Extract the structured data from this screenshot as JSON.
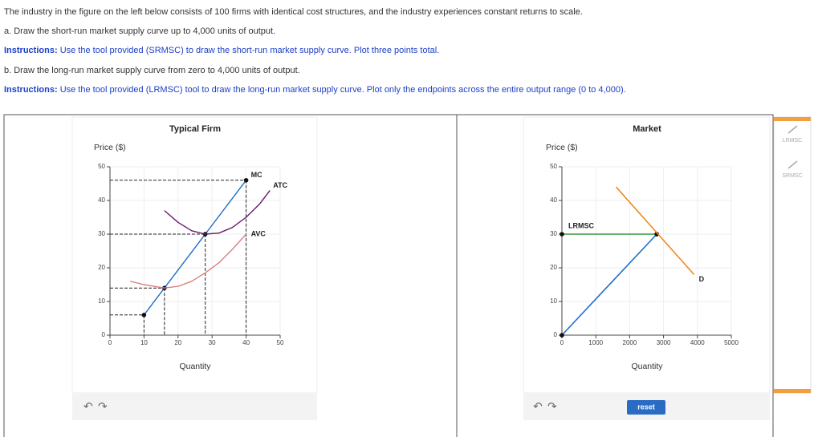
{
  "header": {
    "intro": "The industry in the figure on the left below consists of 100 firms with identical cost structures, and the industry experiences constant returns to scale.",
    "part_a": "a. Draw the short-run market supply curve up to 4,000 units of output.",
    "instr_a": {
      "label": "Instructions:",
      "text": "Use the tool provided (SRMSC) to draw the short-run market supply curve. Plot three points total."
    },
    "part_b": "b. Draw the long-run market supply curve from zero to 4,000 units of output.",
    "instr_b": {
      "label": "Instructions:",
      "text": "Use the tool provided (LRMSC) tool to draw the long-run market supply curve. Plot only the endpoints across the entire output range (0 to 4,000)."
    }
  },
  "chart_data": [
    {
      "type": "line",
      "title": "Typical Firm",
      "y_label": "Price ($)",
      "x_label": "Quantity",
      "xlim": [
        0,
        50
      ],
      "ylim": [
        0,
        50
      ],
      "xticks": [
        0,
        10,
        20,
        30,
        40,
        50
      ],
      "yticks": [
        0,
        10,
        20,
        30,
        40,
        50
      ],
      "grid": true,
      "series": [
        {
          "name": "MC",
          "color": "#1f6fc8",
          "x": [
            10,
            16,
            28,
            40
          ],
          "values": [
            6,
            14,
            30,
            46
          ],
          "markers": true,
          "guides": true
        },
        {
          "name": "ATC",
          "color": "#6a1a6a",
          "x": [
            16,
            20,
            24,
            28,
            32,
            36,
            40,
            44,
            47
          ],
          "values": [
            37,
            33.5,
            31,
            30,
            30.3,
            32,
            35,
            39,
            43
          ]
        },
        {
          "name": "AVC",
          "color": "#d98080",
          "x": [
            6,
            10,
            16,
            20,
            24,
            28,
            32,
            36,
            40
          ],
          "values": [
            16,
            15,
            14,
            14.5,
            16,
            18.5,
            21.5,
            25.5,
            30
          ]
        }
      ]
    },
    {
      "type": "line",
      "title": "Market",
      "y_label": "Price ($)",
      "x_label": "Quantity",
      "xlim": [
        0,
        5000
      ],
      "ylim": [
        0,
        50
      ],
      "xticks": [
        0,
        1000,
        2000,
        3000,
        4000,
        5000
      ],
      "yticks": [
        0,
        10,
        20,
        30,
        40,
        50
      ],
      "grid": true,
      "series": [
        {
          "color": "#1f6fc8",
          "x": [
            0,
            2800
          ],
          "values": [
            0,
            30
          ],
          "markers": true
        },
        {
          "name": "LRMSC",
          "color": "#3a9a3a",
          "x": [
            0,
            2800
          ],
          "values": [
            30,
            30
          ],
          "markers": true
        },
        {
          "name": "D",
          "color": "#f08a1c",
          "x": [
            1600,
            3900
          ],
          "values": [
            44,
            18
          ]
        }
      ]
    }
  ],
  "toolbar": {
    "tools": [
      "LRMSC",
      "SRMSC"
    ]
  },
  "reset": "reset"
}
